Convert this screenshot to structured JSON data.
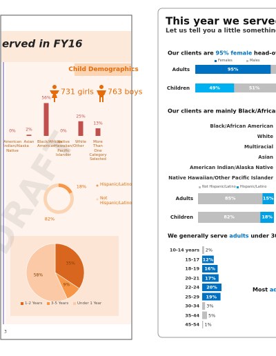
{
  "left_page": {
    "title": "erved in FY16",
    "watermark": "DRAFT",
    "page_number": "3",
    "section_heading": "Child Demographics",
    "girls": "731 girls",
    "boys": "763 boys",
    "race_chart": {
      "categories": [
        "American Indian/Alaska Native",
        "Asian",
        "Black/African American",
        "Native Hawaiian/Other Pacific Islander",
        "White",
        "More Than One Category Selected"
      ],
      "values": [
        0,
        2,
        56,
        0,
        25,
        13
      ],
      "value_labels": [
        "0%",
        "2%",
        "56%",
        "0%",
        "25%",
        "13%"
      ],
      "color": "#c0504d"
    },
    "ethnicity_chart": {
      "categories": [
        "Hispanic/Latino",
        "Not Hispanic/Latino"
      ],
      "values": [
        18,
        82
      ],
      "value_labels": [
        "18%",
        "82%"
      ],
      "colors": [
        "#f79646",
        "#fbd4b4"
      ]
    },
    "age_chart": {
      "categories": [
        "1-2 Years",
        "3-5 Years",
        "Under 1 Year"
      ],
      "values": [
        35,
        9,
        58
      ],
      "value_labels": [
        "35%",
        "9%",
        "58%"
      ],
      "colors": [
        "#d9661f",
        "#f79646",
        "#fbc9a5"
      ]
    }
  },
  "right_page": {
    "title": "This year we served c",
    "subtitle": "Let us tell you a little something",
    "accent": "#0070c0",
    "gender": {
      "heading": [
        "Our clients are ",
        "95% female",
        " head-of-"
      ],
      "legend": [
        "Females",
        "Males"
      ],
      "colors": [
        "#0070c0",
        "#bfbfbf"
      ],
      "rows": [
        {
          "label": "Adults",
          "values": [
            95
          ],
          "value_labels": [
            "95%"
          ],
          "colors": [
            "#0070c0"
          ]
        },
        {
          "label": "Children",
          "values": [
            49,
            51
          ],
          "value_labels": [
            "49%",
            "51%"
          ],
          "colors": [
            "#00b0f0",
            "#bfbfbf"
          ]
        }
      ]
    },
    "race": {
      "heading": [
        "Our clients are mainly Black/African"
      ],
      "categories": [
        "Black/African American",
        "White",
        "Multiracial",
        "Asian",
        "American Indian/Alaska Native",
        "Native Hawaiian/Other Pacific Islander"
      ]
    },
    "ethnicity": {
      "legend": [
        "Not Hispanic/Latino",
        "Hispanic/Latino"
      ],
      "colors": [
        "#bfbfbf",
        "#00a0e3"
      ],
      "rows": [
        {
          "label": "Adults",
          "values": [
            85,
            15
          ],
          "value_labels": [
            "85%",
            "15%"
          ]
        },
        {
          "label": "Children",
          "values": [
            82,
            18
          ],
          "value_labels": [
            "82%",
            "18%"
          ]
        }
      ]
    },
    "age": {
      "heading": [
        "We generally serve ",
        "adults",
        " under 30"
      ],
      "categories": [
        "10-14 years",
        "15-17",
        "18-19",
        "20-21",
        "22-24",
        "25-29",
        "30-34",
        "35-44",
        "45-54"
      ],
      "values": [
        2,
        12,
        16,
        17,
        20,
        19,
        3,
        5,
        1
      ],
      "value_labels": [
        "2%",
        "12%",
        "16%",
        "17%",
        "20%",
        "19%",
        "3%",
        "5%",
        "1%"
      ],
      "colors": [
        "#bfbfbf",
        "#0070c0",
        "#0070c0",
        "#0070c0",
        "#0070c0",
        "#0070c0",
        "#bfbfbf",
        "#bfbfbf",
        "#bfbfbf"
      ]
    },
    "note": [
      "Most ",
      "ad"
    ]
  }
}
